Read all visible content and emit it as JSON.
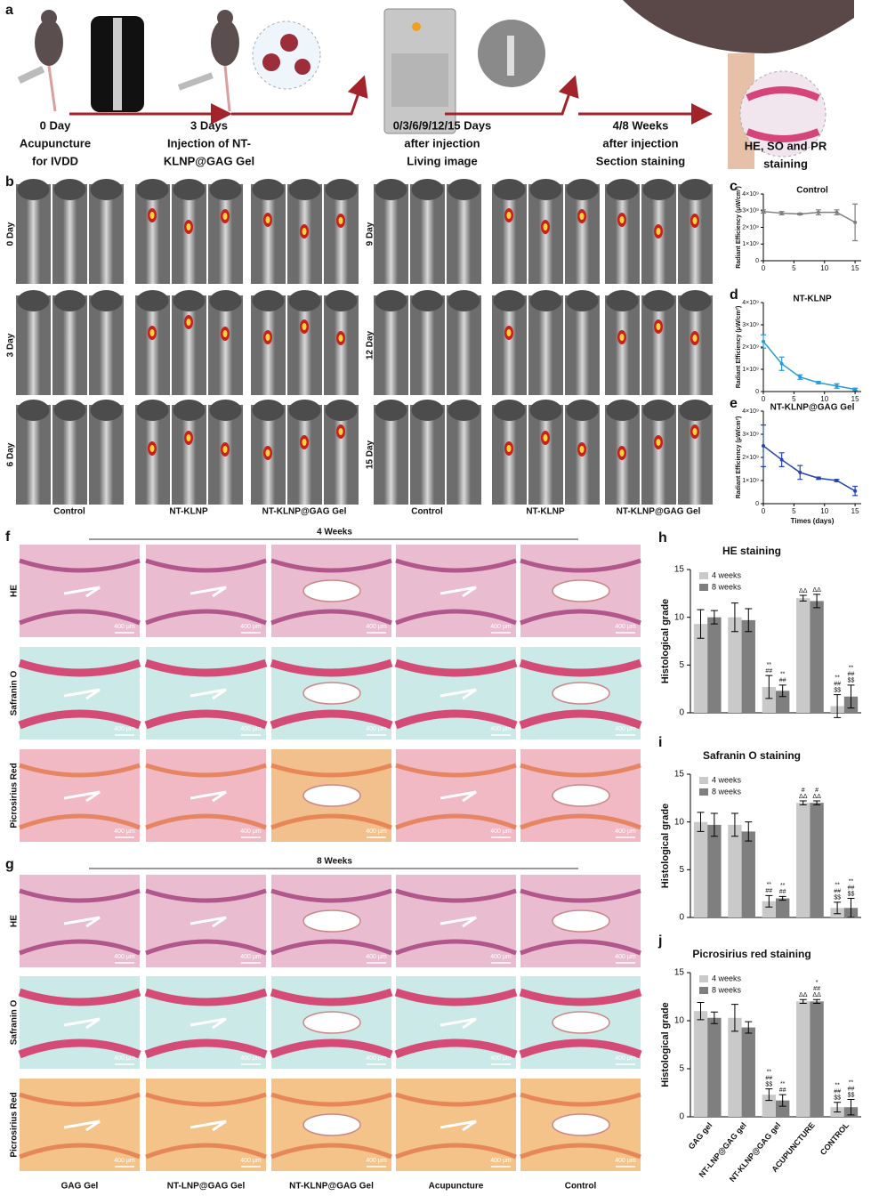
{
  "panel_a": {
    "label": "a",
    "steps": [
      {
        "head": "0 Day",
        "lines": [
          "Acupuncture",
          "for IVDD"
        ]
      },
      {
        "head": "3 Days",
        "lines": [
          "Injection of NT-",
          "KLNP@GAG Gel"
        ]
      },
      {
        "head": "0/3/6/9/12/15 Days",
        "lines": [
          "after injection",
          "Living image"
        ]
      },
      {
        "head": "4/8 Weeks",
        "lines": [
          "after injection",
          "Section staining"
        ]
      },
      {
        "head": "HE, SO and PR",
        "lines": [
          "staining"
        ]
      }
    ]
  },
  "panel_b": {
    "label": "b",
    "rows": [
      "0 Day",
      "3 Day",
      "6 Day",
      "9 Day",
      "12 Day",
      "15 Day"
    ],
    "columns": [
      "Control",
      "NT-KLNP",
      "NT-KLNP@GAG Gel"
    ]
  },
  "panel_f": {
    "label": "f",
    "title": "4 Weeks"
  },
  "panel_g": {
    "label": "g",
    "title": "8 Weeks"
  },
  "histology": {
    "rows": [
      "HE",
      "Safranin O",
      "Picrosirius Red"
    ],
    "columns": [
      "GAG Gel",
      "NT-LNP@GAG Gel",
      "NT-KLNP@GAG Gel",
      "Acupuncture",
      "Control"
    ],
    "scale_bar": "400 μm"
  },
  "chart_data": [
    {
      "type": "line",
      "panel": "c",
      "title": "Control",
      "ylabel": "Radiant Efficiency (μW/cm²)",
      "x": [
        0,
        3,
        6,
        9,
        12,
        15
      ],
      "series": [
        {
          "name": "Control",
          "color": "#7f7f7f",
          "values": [
            2950000000,
            2850000000,
            2800000000,
            2900000000,
            2900000000,
            2300000000
          ],
          "errors": [
            100000000,
            100000000,
            50000000,
            150000000,
            150000000,
            1100000000
          ]
        }
      ],
      "xlim": [
        0,
        16
      ],
      "xticks": [
        0,
        5,
        10,
        15
      ],
      "ylim": [
        0,
        4000000000
      ],
      "yticks": [
        0,
        {
          "value": 1000000000,
          "label": "1×10⁹"
        },
        {
          "value": 2000000000,
          "label": "2×10⁹"
        },
        {
          "value": 3000000000,
          "label": "3×10⁹"
        },
        {
          "value": 4000000000,
          "label": "4×10⁹"
        }
      ]
    },
    {
      "type": "line",
      "panel": "d",
      "title": "NT-KLNP",
      "ylabel": "Radiant Efficiency (μW/cm²)",
      "x": [
        0,
        3,
        6,
        9,
        12,
        15
      ],
      "series": [
        {
          "name": "NT-KLNP",
          "color": "#2b9bd8",
          "values": [
            2250000000,
            1250000000,
            650000000,
            400000000,
            250000000,
            100000000
          ],
          "errors": [
            300000000,
            300000000,
            100000000,
            50000000,
            100000000,
            50000000
          ]
        }
      ],
      "xlim": [
        0,
        16
      ],
      "xticks": [
        0,
        5,
        10,
        15
      ],
      "ylim": [
        0,
        4000000000
      ],
      "yticks": [
        0,
        {
          "value": 1000000000,
          "label": "1×10⁹"
        },
        {
          "value": 2000000000,
          "label": "2×10⁹"
        },
        {
          "value": 3000000000,
          "label": "3×10⁹"
        },
        {
          "value": 4000000000,
          "label": "4×10⁹"
        }
      ]
    },
    {
      "type": "line",
      "panel": "e",
      "title": "NT-KLNP@GAG Gel",
      "ylabel": "Radiant Efficiency (μW/cm²)",
      "xlabel": "Times  (days)",
      "x": [
        0,
        3,
        6,
        9,
        12,
        15
      ],
      "series": [
        {
          "name": "NT-KLNP@GAG Gel",
          "color": "#2545b0",
          "values": [
            2500000000,
            1900000000,
            1350000000,
            1100000000,
            1000000000,
            550000000
          ],
          "errors": [
            900000000,
            300000000,
            300000000,
            50000000,
            50000000,
            200000000
          ]
        }
      ],
      "xlim": [
        0,
        16
      ],
      "xticks": [
        0,
        5,
        10,
        15
      ],
      "ylim": [
        0,
        4000000000
      ],
      "yticks": [
        0,
        {
          "value": 1000000000,
          "label": "1×10⁹"
        },
        {
          "value": 2000000000,
          "label": "2×10⁹"
        },
        {
          "value": 3000000000,
          "label": "3×10⁹"
        },
        {
          "value": 4000000000,
          "label": "4×10⁹"
        }
      ]
    },
    {
      "type": "bar",
      "panel": "h",
      "title": "HE staining",
      "ylabel": "Histological grade",
      "categories": [
        "GAG gel",
        "NT-LNP@GAG gel",
        "NT-KLNP@GAG gel",
        "ACUPUNCTURE",
        "CONTROL"
      ],
      "series": [
        {
          "name": "4 weeks",
          "color": "#c9c9c9",
          "values": [
            9.3,
            10,
            2.7,
            12,
            0.7
          ],
          "errors": [
            1.5,
            1.5,
            1.2,
            0.3,
            1.2
          ],
          "sig": [
            null,
            null,
            [
              "**",
              "##"
            ],
            [
              "ΔΔ"
            ],
            [
              "**",
              "##",
              "$$"
            ]
          ]
        },
        {
          "name": "8 weeks",
          "color": "#7f7f7f",
          "values": [
            10,
            9.7,
            2.3,
            11.7,
            1.7
          ],
          "errors": [
            0.7,
            1.2,
            0.6,
            0.7,
            1.2
          ],
          "sig": [
            null,
            null,
            [
              "**",
              "##"
            ],
            [
              "ΔΔ"
            ],
            [
              "**",
              "##",
              "$$"
            ]
          ]
        }
      ],
      "ylim": [
        0,
        15
      ],
      "yticks": [
        0,
        5,
        10,
        15
      ]
    },
    {
      "type": "bar",
      "panel": "i",
      "title": "Safranin O staining",
      "ylabel": "Histological grade",
      "categories": [
        "GAG gel",
        "NT-LNP@GAG gel",
        "NT-KLNP@GAG gel",
        "ACUPUNCTURE",
        "CONTROL"
      ],
      "series": [
        {
          "name": "4 weeks",
          "color": "#c9c9c9",
          "values": [
            10,
            9.7,
            1.7,
            12,
            1
          ],
          "errors": [
            1,
            1.2,
            0.6,
            0.2,
            0.6
          ],
          "sig": [
            null,
            null,
            [
              "**",
              "##"
            ],
            [
              "#",
              "ΔΔ"
            ],
            [
              "**",
              "##",
              "$$"
            ]
          ]
        },
        {
          "name": "8 weeks",
          "color": "#7f7f7f",
          "values": [
            9.7,
            9,
            2,
            12,
            1
          ],
          "errors": [
            1.2,
            1,
            0.2,
            0.2,
            1
          ],
          "sig": [
            null,
            null,
            [
              "**",
              "##"
            ],
            [
              "#",
              "ΔΔ"
            ],
            [
              "**",
              "##",
              "$$"
            ]
          ]
        }
      ],
      "ylim": [
        0,
        15
      ],
      "yticks": [
        0,
        5,
        10,
        15
      ]
    },
    {
      "type": "bar",
      "panel": "j",
      "title": "Picrosirius red staining",
      "ylabel": "Histological grade",
      "categories": [
        "GAG gel",
        "NT-LNP@GAG gel",
        "NT-KLNP@GAG gel",
        "ACUPUNCTURE",
        "CONTROL"
      ],
      "series": [
        {
          "name": "4 weeks",
          "color": "#c9c9c9",
          "values": [
            11,
            10.3,
            2.3,
            12,
            1
          ],
          "errors": [
            0.9,
            1.4,
            0.6,
            0.2,
            0.5
          ],
          "sig": [
            null,
            null,
            [
              "**",
              "##",
              "$$"
            ],
            [
              "ΔΔ"
            ],
            [
              "**",
              "##",
              "$$"
            ]
          ]
        },
        {
          "name": "8 weeks",
          "color": "#7f7f7f",
          "values": [
            10.3,
            9.3,
            1.7,
            12,
            1
          ],
          "errors": [
            0.6,
            0.6,
            0.6,
            0.2,
            0.8
          ],
          "sig": [
            null,
            null,
            [
              "**",
              "##"
            ],
            [
              "*",
              "##",
              "ΔΔ"
            ],
            [
              "**",
              "##",
              "$$"
            ]
          ]
        }
      ],
      "ylim": [
        0,
        15
      ],
      "yticks": [
        0,
        5,
        10,
        15
      ]
    }
  ]
}
